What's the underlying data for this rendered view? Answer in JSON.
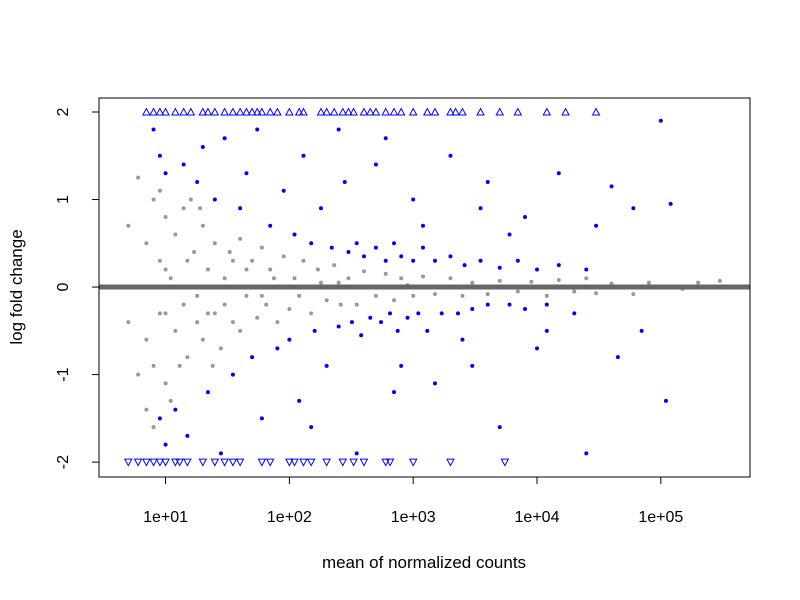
{
  "chart_data": {
    "type": "scatter",
    "title": "",
    "xlabel": "mean of normalized counts",
    "ylabel": "log fold change",
    "x_scale": "log",
    "xlim": [
      2.9,
      525000
    ],
    "ylim": [
      -2.17,
      2.16
    ],
    "x_ticks": [
      10,
      100,
      1000,
      10000,
      100000
    ],
    "x_tick_labels": [
      "1e+01",
      "1e+02",
      "1e+03",
      "1e+04",
      "1e+05"
    ],
    "y_ticks": [
      -2,
      -1,
      0,
      1,
      2
    ],
    "y_tick_labels": [
      "-2",
      "-1",
      "0",
      "1",
      "2"
    ],
    "grid": false,
    "reference_line": {
      "y": 0,
      "color": "#666666"
    },
    "series": [
      {
        "color": "#999999",
        "marker": "dot",
        "points": [
          [
            7,
            0.5
          ],
          [
            7,
            -0.6
          ],
          [
            8,
            1.0
          ],
          [
            8,
            -0.9
          ],
          [
            9,
            0.3
          ],
          [
            9,
            -0.3
          ],
          [
            10,
            0.8
          ],
          [
            10,
            -1.1
          ],
          [
            11,
            0.1
          ],
          [
            12,
            0.6
          ],
          [
            12,
            -0.5
          ],
          [
            14,
            -0.2
          ],
          [
            14,
            0.9
          ],
          [
            15,
            -0.8
          ],
          [
            17,
            0.4
          ],
          [
            18,
            -0.4
          ],
          [
            20,
            0.7
          ],
          [
            20,
            -0.6
          ],
          [
            22,
            0.2
          ],
          [
            25,
            -0.3
          ],
          [
            25,
            0.5
          ],
          [
            28,
            -0.7
          ],
          [
            30,
            0.1
          ],
          [
            33,
            0.4
          ],
          [
            35,
            -0.4
          ],
          [
            40,
            0.55
          ],
          [
            40,
            -0.5
          ],
          [
            45,
            -0.1
          ],
          [
            50,
            0.3
          ],
          [
            55,
            -0.35
          ],
          [
            60,
            0.45
          ],
          [
            65,
            -0.2
          ],
          [
            70,
            0.2
          ],
          [
            80,
            -0.4
          ],
          [
            90,
            0.35
          ],
          [
            100,
            -0.25
          ],
          [
            110,
            0.1
          ],
          [
            130,
            0.3
          ],
          [
            150,
            -0.3
          ],
          [
            170,
            0.2
          ],
          [
            200,
            -0.15
          ],
          [
            230,
            0.25
          ],
          [
            260,
            -0.2
          ],
          [
            300,
            0.1
          ],
          [
            350,
            -0.2
          ],
          [
            400,
            0.18
          ],
          [
            500,
            -0.1
          ],
          [
            600,
            0.15
          ],
          [
            700,
            -0.15
          ],
          [
            800,
            0.1
          ],
          [
            1000,
            -0.1
          ],
          [
            1200,
            0.12
          ],
          [
            1500,
            -0.08
          ],
          [
            2000,
            0.1
          ],
          [
            2500,
            -0.1
          ],
          [
            3000,
            0.05
          ],
          [
            4000,
            -0.08
          ],
          [
            5000,
            0.07
          ],
          [
            7000,
            -0.05
          ],
          [
            9000,
            0.06
          ],
          [
            12000,
            -0.1
          ],
          [
            15000,
            0.08
          ],
          [
            20000,
            -0.05
          ],
          [
            25000,
            0.1
          ],
          [
            30000,
            -0.07
          ],
          [
            40000,
            0.04
          ],
          [
            60000,
            -0.08
          ],
          [
            80000,
            0.05
          ],
          [
            150000,
            -0.02
          ],
          [
            200000,
            0.05
          ],
          [
            300000,
            0.07
          ],
          [
            5,
            0.7
          ],
          [
            5,
            -0.4
          ],
          [
            6,
            1.25
          ],
          [
            6,
            -1.0
          ],
          [
            7,
            -1.4
          ],
          [
            8,
            -1.6
          ],
          [
            9,
            1.1
          ],
          [
            11,
            -1.3
          ],
          [
            13,
            -0.9
          ],
          [
            16,
            1.0
          ],
          [
            19,
            0.9
          ],
          [
            24,
            -0.9
          ],
          [
            10,
            0.2
          ],
          [
            10,
            -0.3
          ],
          [
            12,
            0.0
          ],
          [
            15,
            0.3
          ],
          [
            18,
            -0.1
          ],
          [
            22,
            -0.3
          ],
          [
            30,
            -0.2
          ],
          [
            35,
            0.3
          ],
          [
            45,
            0.2
          ],
          [
            60,
            -0.1
          ],
          [
            75,
            0.1
          ],
          [
            120,
            -0.1
          ],
          [
            180,
            0.05
          ],
          [
            250,
            0.05
          ],
          [
            450,
            0.0
          ],
          [
            900,
            0.02
          ]
        ]
      },
      {
        "color": "#0000ff",
        "marker": "dot",
        "points": [
          [
            8,
            1.8
          ],
          [
            9,
            1.5
          ],
          [
            10,
            1.3
          ],
          [
            9,
            -1.5
          ],
          [
            10,
            -1.8
          ],
          [
            12,
            -1.4
          ],
          [
            14,
            1.4
          ],
          [
            15,
            -1.7
          ],
          [
            18,
            1.2
          ],
          [
            20,
            1.6
          ],
          [
            22,
            -1.2
          ],
          [
            25,
            1.0
          ],
          [
            28,
            -1.9
          ],
          [
            30,
            1.7
          ],
          [
            35,
            -1.0
          ],
          [
            40,
            0.9
          ],
          [
            45,
            1.3
          ],
          [
            50,
            -0.8
          ],
          [
            55,
            1.8
          ],
          [
            60,
            -1.5
          ],
          [
            70,
            0.7
          ],
          [
            80,
            -0.7
          ],
          [
            90,
            1.1
          ],
          [
            100,
            -0.6
          ],
          [
            110,
            0.6
          ],
          [
            120,
            -1.3
          ],
          [
            130,
            1.5
          ],
          [
            150,
            0.5
          ],
          [
            160,
            -0.5
          ],
          [
            180,
            0.9
          ],
          [
            200,
            -0.9
          ],
          [
            220,
            0.45
          ],
          [
            250,
            -0.45
          ],
          [
            280,
            1.2
          ],
          [
            300,
            0.4
          ],
          [
            320,
            -0.4
          ],
          [
            350,
            0.5
          ],
          [
            380,
            -0.55
          ],
          [
            400,
            0.35
          ],
          [
            450,
            -0.35
          ],
          [
            500,
            0.45
          ],
          [
            550,
            -0.4
          ],
          [
            600,
            0.3
          ],
          [
            650,
            -0.3
          ],
          [
            700,
            0.5
          ],
          [
            750,
            -0.5
          ],
          [
            800,
            0.35
          ],
          [
            900,
            -0.35
          ],
          [
            1000,
            0.3
          ],
          [
            1100,
            -0.3
          ],
          [
            1200,
            0.45
          ],
          [
            1300,
            -0.5
          ],
          [
            1500,
            0.3
          ],
          [
            1700,
            -0.3
          ],
          [
            2000,
            0.35
          ],
          [
            2300,
            -0.3
          ],
          [
            2600,
            0.25
          ],
          [
            3000,
            -0.25
          ],
          [
            3500,
            0.3
          ],
          [
            4000,
            -0.2
          ],
          [
            5000,
            0.22
          ],
          [
            6000,
            -0.2
          ],
          [
            7000,
            0.3
          ],
          [
            8000,
            -0.25
          ],
          [
            10000,
            0.2
          ],
          [
            12000,
            -0.2
          ],
          [
            15000,
            0.25
          ],
          [
            20000,
            -0.3
          ],
          [
            25000,
            0.2
          ],
          [
            500,
            1.4
          ],
          [
            700,
            -1.2
          ],
          [
            1000,
            1.0
          ],
          [
            1500,
            -1.1
          ],
          [
            2000,
            1.5
          ],
          [
            3000,
            -0.9
          ],
          [
            4000,
            1.2
          ],
          [
            5000,
            -1.6
          ],
          [
            8000,
            0.8
          ],
          [
            10000,
            -0.7
          ],
          [
            15000,
            1.3
          ],
          [
            25000,
            -1.9
          ],
          [
            40000,
            1.15
          ],
          [
            60000,
            0.9
          ],
          [
            70000,
            -0.5
          ],
          [
            100000,
            1.9
          ],
          [
            110000,
            -1.3
          ],
          [
            120000,
            0.95
          ],
          [
            45000,
            -0.8
          ],
          [
            30000,
            0.7
          ],
          [
            250,
            1.8
          ],
          [
            150,
            -1.6
          ],
          [
            350,
            -1.9
          ],
          [
            600,
            1.7
          ],
          [
            800,
            -0.9
          ],
          [
            1200,
            0.7
          ],
          [
            2500,
            -0.6
          ],
          [
            3500,
            0.9
          ],
          [
            6000,
            0.6
          ],
          [
            12000,
            -0.5
          ]
        ]
      },
      {
        "color": "#0000ff",
        "marker": "triangle-up",
        "y": 2,
        "x": [
          7,
          8,
          9,
          10,
          12,
          14,
          16,
          20,
          22,
          25,
          30,
          35,
          40,
          45,
          50,
          55,
          60,
          70,
          80,
          100,
          120,
          130,
          180,
          200,
          230,
          270,
          300,
          330,
          400,
          450,
          500,
          600,
          700,
          800,
          1000,
          1300,
          1500,
          2000,
          2200,
          2500,
          3500,
          5000,
          7000,
          12000,
          17000,
          30000
        ]
      },
      {
        "color": "#0000ff",
        "marker": "triangle-down",
        "y": -2,
        "x": [
          5,
          6,
          7,
          8,
          9,
          10,
          12,
          13,
          15,
          20,
          25,
          30,
          35,
          40,
          60,
          70,
          100,
          110,
          130,
          150,
          200,
          270,
          330,
          400,
          600,
          650,
          1000,
          2000,
          5500
        ]
      }
    ]
  }
}
